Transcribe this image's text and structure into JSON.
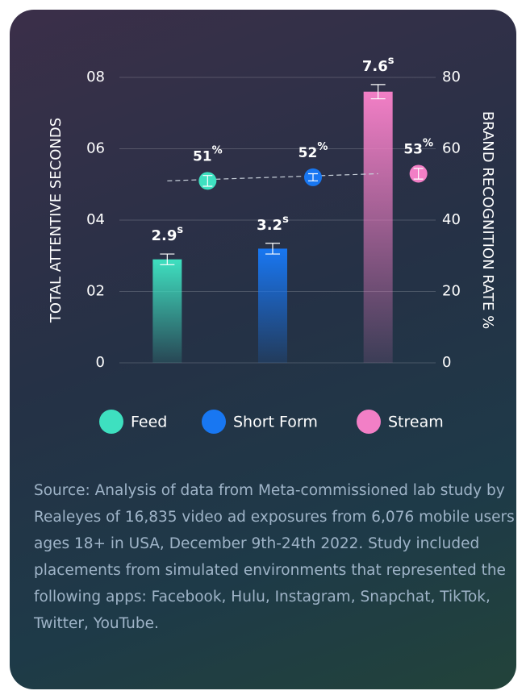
{
  "chart_data": {
    "type": "bar",
    "ylabel": "TOTAL ATTENTIVE SECONDS",
    "y2label": "BRAND RECOGNITION RATE %",
    "ylim": [
      0,
      8
    ],
    "yticks": [
      0,
      {
        "value": 2,
        "label": "02"
      },
      {
        "value": 4,
        "label": "04"
      },
      {
        "value": 6,
        "label": "06"
      },
      {
        "value": 8,
        "label": "08"
      }
    ],
    "y2lim": [
      0,
      80
    ],
    "y2ticks": [
      0,
      20,
      40,
      60,
      80
    ],
    "grid": true,
    "legend": [
      {
        "name": "Feed",
        "color": "#3ee0c0"
      },
      {
        "name": "Short Form",
        "color": "#1877f2"
      },
      {
        "name": "Stream",
        "color": "#f27fc6"
      }
    ],
    "bars": {
      "values": [
        2.9,
        3.2,
        7.6
      ],
      "value_labels": [
        "2.9s",
        "3.2s",
        "7.6s"
      ],
      "errors": [
        0.15,
        0.15,
        0.2
      ]
    },
    "line": {
      "axis": "y2",
      "values": [
        51,
        52,
        53
      ],
      "value_labels": [
        "51%",
        "52%",
        "53%"
      ],
      "errors": [
        1.5,
        1,
        1.5
      ]
    }
  },
  "source": "Source: Analysis of data from Meta-commissioned lab study by Realeyes of 16,835 video ad exposures from 6,076 mobile users ages 18+ in USA, December 9th-24th 2022. Study included placements from simulated environments that represented the following apps: Facebook, Hulu, Instagram, Snapchat, TikTok, Twitter, YouTube."
}
